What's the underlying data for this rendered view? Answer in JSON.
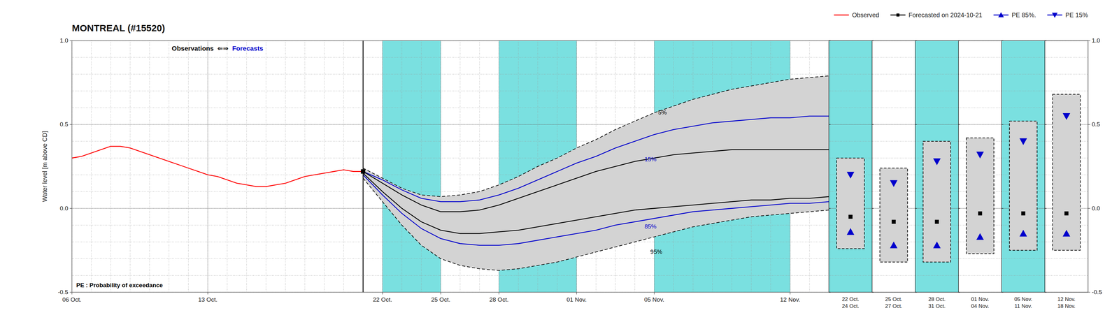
{
  "chart_data": [
    {
      "type": "line",
      "title": "MONTREAL (#15520)",
      "y_label": "Water level [m above CD]",
      "xlim": [
        0,
        39
      ],
      "xticks": [
        {
          "value": 0,
          "label": "06 Oct."
        },
        {
          "value": 7,
          "label": "13 Oct."
        },
        {
          "value": 16,
          "label": "22 Oct."
        },
        {
          "value": 19,
          "label": "25 Oct."
        },
        {
          "value": 22,
          "label": "28 Oct."
        },
        {
          "value": 26,
          "label": "01 Nov."
        },
        {
          "value": 30,
          "label": "05 Nov."
        },
        {
          "value": 37,
          "label": "12 Nov."
        }
      ],
      "ylim": [
        -0.5,
        1.0
      ],
      "yticks": [
        -0.5,
        {
          "value": 0.0,
          "label": "0.0"
        },
        0.5,
        {
          "value": 1.0,
          "label": "1.0"
        }
      ],
      "grid": true,
      "legend": "upper right",
      "fill_color": "#d3d3d3",
      "span_color": "#7ae0e0",
      "shaded_spans": [
        [
          16,
          19
        ],
        [
          22,
          26
        ],
        [
          30,
          37
        ]
      ],
      "series": [
        {
          "name": "Observed",
          "color": "#ff0000",
          "line_style": "solid",
          "x": [
            0,
            0.5,
            1,
            1.5,
            2,
            2.5,
            3,
            3.5,
            4,
            4.5,
            5,
            5.5,
            6,
            6.5,
            7,
            7.5,
            8,
            8.5,
            9,
            9.5,
            10,
            10.5,
            11,
            11.5,
            12,
            12.5,
            13,
            13.5,
            14,
            14.5,
            15
          ],
          "values": [
            0.3,
            0.31,
            0.33,
            0.35,
            0.37,
            0.37,
            0.36,
            0.34,
            0.32,
            0.3,
            0.28,
            0.26,
            0.24,
            0.22,
            0.2,
            0.19,
            0.17,
            0.15,
            0.14,
            0.13,
            0.13,
            0.14,
            0.15,
            0.17,
            0.19,
            0.2,
            0.21,
            0.22,
            0.23,
            0.22,
            0.22
          ]
        },
        {
          "color": "#000000",
          "line_style": "dashed",
          "x": [
            15,
            16,
            17,
            18,
            19,
            20,
            21,
            22,
            23,
            24,
            25,
            26,
            27,
            28,
            29,
            30,
            31,
            32,
            33,
            34,
            35,
            36,
            37,
            38,
            39
          ],
          "values": [
            0.24,
            0.18,
            0.12,
            0.08,
            0.07,
            0.08,
            0.1,
            0.14,
            0.19,
            0.25,
            0.3,
            0.36,
            0.41,
            0.47,
            0.52,
            0.57,
            0.61,
            0.65,
            0.68,
            0.71,
            0.73,
            0.75,
            0.77,
            0.78,
            0.79
          ]
        },
        {
          "color": "#0000cc",
          "line_style": "solid",
          "x": [
            15,
            16,
            17,
            18,
            19,
            20,
            21,
            22,
            23,
            24,
            25,
            26,
            27,
            28,
            29,
            30,
            31,
            32,
            33,
            34,
            35,
            36,
            37,
            38,
            39
          ],
          "values": [
            0.22,
            0.17,
            0.11,
            0.06,
            0.04,
            0.04,
            0.05,
            0.08,
            0.12,
            0.17,
            0.22,
            0.27,
            0.31,
            0.36,
            0.4,
            0.44,
            0.47,
            0.49,
            0.51,
            0.52,
            0.53,
            0.54,
            0.54,
            0.55,
            0.55
          ]
        },
        {
          "color": "#000000",
          "line_style": "solid",
          "x": [
            15,
            16,
            17,
            18,
            19,
            20,
            21,
            22,
            23,
            24,
            25,
            26,
            27,
            28,
            29,
            30,
            31,
            32,
            33,
            34,
            35,
            36,
            37,
            38,
            39
          ],
          "values": [
            0.22,
            0.15,
            0.08,
            0.02,
            -0.02,
            -0.02,
            -0.01,
            0.02,
            0.06,
            0.1,
            0.14,
            0.18,
            0.22,
            0.25,
            0.28,
            0.3,
            0.32,
            0.33,
            0.34,
            0.35,
            0.35,
            0.35,
            0.35,
            0.35,
            0.35
          ]
        },
        {
          "color": "#000000",
          "line_style": "solid",
          "x": [
            15,
            16,
            17,
            18,
            19,
            20,
            21,
            22,
            23,
            24,
            25,
            26,
            27,
            28,
            29,
            30,
            31,
            32,
            33,
            34,
            35,
            36,
            37,
            38,
            39
          ],
          "values": [
            0.21,
            0.1,
            0.0,
            -0.08,
            -0.13,
            -0.15,
            -0.15,
            -0.14,
            -0.13,
            -0.11,
            -0.09,
            -0.07,
            -0.05,
            -0.03,
            -0.01,
            0.0,
            0.01,
            0.02,
            0.03,
            0.04,
            0.05,
            0.05,
            0.06,
            0.06,
            0.07
          ]
        },
        {
          "color": "#0000cc",
          "line_style": "solid",
          "x": [
            15,
            16,
            17,
            18,
            19,
            20,
            21,
            22,
            23,
            24,
            25,
            26,
            27,
            28,
            29,
            30,
            31,
            32,
            33,
            34,
            35,
            36,
            37,
            38,
            39
          ],
          "values": [
            0.2,
            0.08,
            -0.03,
            -0.12,
            -0.18,
            -0.21,
            -0.22,
            -0.22,
            -0.21,
            -0.19,
            -0.17,
            -0.15,
            -0.13,
            -0.1,
            -0.08,
            -0.06,
            -0.04,
            -0.02,
            -0.01,
            0.0,
            0.01,
            0.02,
            0.03,
            0.03,
            0.04
          ]
        },
        {
          "color": "#000000",
          "line_style": "dashed",
          "x": [
            15,
            16,
            17,
            18,
            19,
            20,
            21,
            22,
            23,
            24,
            25,
            26,
            27,
            28,
            29,
            30,
            31,
            32,
            33,
            34,
            35,
            36,
            37,
            38,
            39
          ],
          "values": [
            0.18,
            0.04,
            -0.1,
            -0.22,
            -0.3,
            -0.34,
            -0.36,
            -0.37,
            -0.36,
            -0.34,
            -0.32,
            -0.29,
            -0.26,
            -0.23,
            -0.2,
            -0.17,
            -0.14,
            -0.11,
            -0.09,
            -0.07,
            -0.05,
            -0.04,
            -0.03,
            -0.02,
            -0.01
          ]
        }
      ],
      "annotations": [
        {
          "text": "Observations",
          "color": "#000000"
        },
        {
          "text": "⇐⇒",
          "color": "#000000"
        },
        {
          "text": "Forecasts",
          "color": "#0000cc"
        },
        {
          "text": "5%",
          "x": 30.2,
          "y": 0.56,
          "color": "#000000"
        },
        {
          "text": "15%",
          "x": 29.5,
          "y": 0.28,
          "color": "#0000cc"
        },
        {
          "text": "85%",
          "x": 29.5,
          "y": -0.12,
          "color": "#0000cc"
        },
        {
          "text": "95%",
          "x": 29.8,
          "y": -0.27,
          "color": "#000000"
        },
        {
          "text": "PE : Probability of exceedance",
          "color": "#000000"
        }
      ]
    },
    {
      "type": "scatter",
      "categories": [
        "22 Oct.\n24 Oct.",
        "25 Oct.\n27 Oct.",
        "28 Oct.\n31 Oct.",
        "01 Nov.\n04 Nov.",
        "05 Nov.\n11 Nov.",
        "12 Nov.\n18 Nov."
      ],
      "shaded": [
        true,
        false,
        true,
        false,
        true,
        false
      ],
      "span_color": "#7ae0e0",
      "box_color": "#d3d3d3",
      "ylim": [
        -0.5,
        1.0
      ],
      "yticks": [
        -0.5,
        {
          "value": 0.0,
          "label": "0.0"
        },
        0.5,
        {
          "value": 1.0,
          "label": "1.0"
        }
      ],
      "grid": true,
      "box_top": [
        0.3,
        0.24,
        0.4,
        0.42,
        0.52,
        0.68
      ],
      "box_bottom": [
        -0.24,
        -0.32,
        -0.32,
        -0.27,
        -0.25,
        -0.25
      ],
      "series": [
        {
          "name": "Forecasted on 2024-10-21",
          "color": "#000000",
          "marker": "square",
          "values": [
            -0.05,
            -0.08,
            -0.08,
            -0.03,
            -0.03,
            -0.03
          ]
        },
        {
          "name": "PE 85%.",
          "color": "#0000cc",
          "marker": "triangle-up",
          "values": [
            -0.14,
            -0.22,
            -0.22,
            -0.17,
            -0.15,
            -0.15
          ]
        },
        {
          "name": "PE 15%",
          "color": "#0000cc",
          "marker": "triangle-down",
          "values": [
            0.2,
            0.15,
            0.28,
            0.32,
            0.4,
            0.55
          ]
        }
      ]
    }
  ]
}
